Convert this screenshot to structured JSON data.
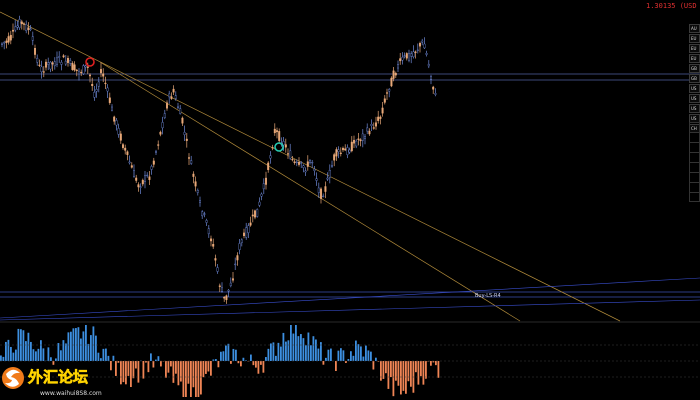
{
  "price_readout": "1.30135 (USD",
  "trend_label": "Buy-LS-R4",
  "side_labels": [
    "AU",
    "EU",
    "EU",
    "EU",
    "GB",
    "GB",
    "US",
    "US",
    "US",
    "US",
    "CH"
  ],
  "logo": {
    "text": "外汇论坛",
    "url": "www.waihui8S8.com"
  },
  "colors": {
    "bull_candle": "#e8a878",
    "bear_candle": "#6f89d8",
    "hist_pos": "#3d8fe0",
    "hist_neg": "#ef8555",
    "trendline": "#b08a3a",
    "hline": "#4d5fa0",
    "signal_down": "#e02020",
    "signal_up": "#25c9b0"
  }
}
